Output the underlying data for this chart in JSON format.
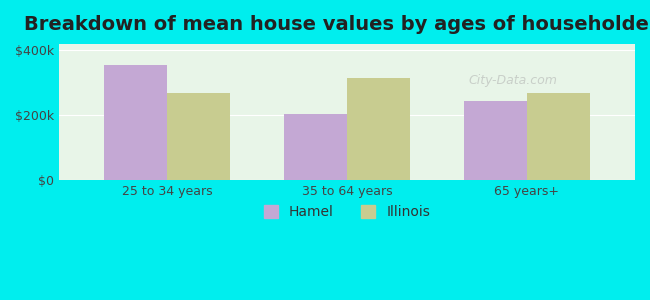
{
  "title": "Breakdown of mean house values by ages of householders",
  "categories": [
    "25 to 34 years",
    "35 to 64 years",
    "65 years+"
  ],
  "hamel_values": [
    355000,
    205000,
    245000
  ],
  "illinois_values": [
    270000,
    315000,
    270000
  ],
  "hamel_color": "#c4a8d4",
  "illinois_color": "#c8cc90",
  "background_color": "#00eeee",
  "plot_bg_color": "#e8f5e8",
  "ylabel_ticks": [
    0,
    200000,
    400000
  ],
  "ylabel_labels": [
    "$0",
    "$200k",
    "$400k"
  ],
  "legend_hamel": "Hamel",
  "legend_illinois": "Illinois",
  "bar_width": 0.35,
  "title_fontsize": 14,
  "tick_fontsize": 9,
  "legend_fontsize": 10
}
